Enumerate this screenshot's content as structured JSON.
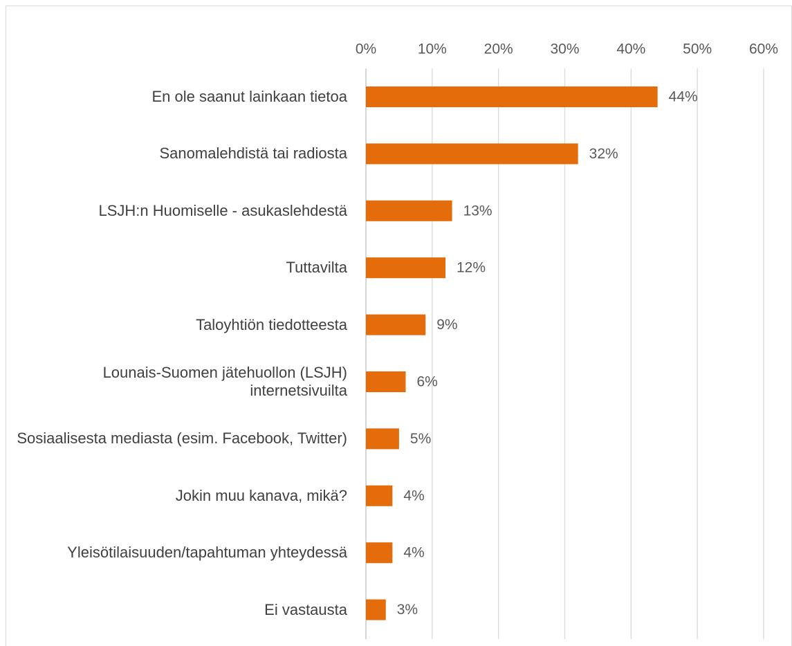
{
  "chart_data": {
    "type": "bar",
    "orientation": "horizontal",
    "categories": [
      "En ole saanut lainkaan tietoa",
      "Sanomalehdistä tai radiosta",
      "LSJH:n Huomiselle - asukaslehdestä",
      "Tuttavilta",
      "Taloyhtiön tiedotteesta",
      "Lounais-Suomen jätehuollon (LSJH) internetsivuilta",
      "Sosiaalisesta mediasta (esim. Facebook, Twitter)",
      "Jokin muu kanava, mikä?",
      "Yleisötilaisuuden/tapahtuman yhteydessä",
      "Ei vastausta"
    ],
    "values": [
      44,
      32,
      13,
      12,
      9,
      6,
      5,
      4,
      4,
      3
    ],
    "value_labels": [
      "44%",
      "32%",
      "13%",
      "12%",
      "9%",
      "6%",
      "5%",
      "4%",
      "4%",
      "3%"
    ],
    "color": "#e46c0a",
    "xlim": [
      0,
      60
    ],
    "xticks": [
      {
        "value": 0,
        "label": "0%"
      },
      {
        "value": 10,
        "label": "10%"
      },
      {
        "value": 20,
        "label": "20%"
      },
      {
        "value": 30,
        "label": "30%"
      },
      {
        "value": 40,
        "label": "40%"
      },
      {
        "value": 50,
        "label": "50%"
      },
      {
        "value": 60,
        "label": "60%"
      }
    ],
    "grid": true
  }
}
